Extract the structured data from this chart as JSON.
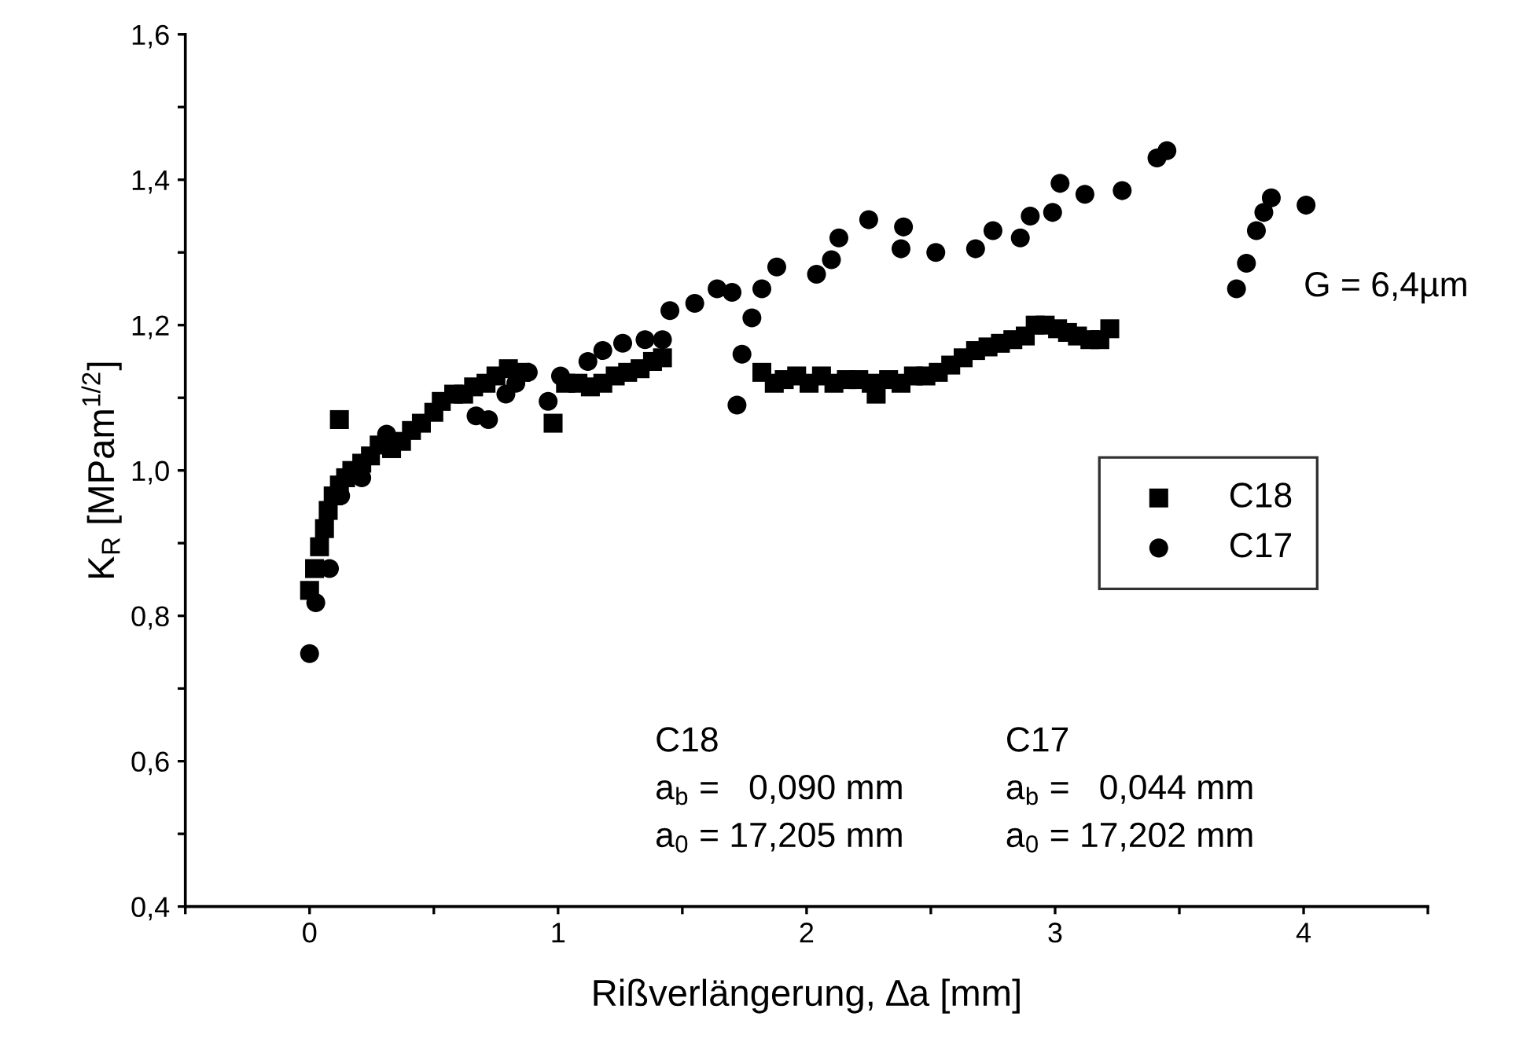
{
  "chart_data": {
    "type": "scatter",
    "xlabel": "Rißverlängerung, ∆a [mm]",
    "ylabel": "K$_{R}$ [MPam$^{1/2}$]",
    "xlim": [
      -0.5,
      4.5
    ],
    "ylim": [
      0.4,
      1.6
    ],
    "xticks": [
      {
        "value": -0.5,
        "label": null
      },
      0,
      {
        "value": 0.5,
        "label": null
      },
      1,
      {
        "value": 1.5,
        "label": null
      },
      2,
      {
        "value": 2.5,
        "label": null
      },
      3,
      {
        "value": 3.5,
        "label": null
      },
      4,
      {
        "value": 4.5,
        "label": null
      }
    ],
    "yticks": [
      {
        "value": 0.4,
        "label": "0,4"
      },
      {
        "value": 0.5,
        "label": null
      },
      {
        "value": 0.6,
        "label": "0,6"
      },
      {
        "value": 0.7,
        "label": null
      },
      {
        "value": 0.8,
        "label": "0,8"
      },
      {
        "value": 0.9,
        "label": null
      },
      {
        "value": 1.0,
        "label": "1,0"
      },
      {
        "value": 1.1,
        "label": null
      },
      {
        "value": 1.2,
        "label": "1,2"
      },
      {
        "value": 1.3,
        "label": null
      },
      {
        "value": 1.4,
        "label": "1,4"
      },
      {
        "value": 1.5,
        "label": null
      },
      {
        "value": 1.6,
        "label": "1,6"
      }
    ],
    "grid": false,
    "legend": "right",
    "annotations": [
      "G = 6,4µm",
      "C18\na$_{b}$ =   0,090 mm\na$_{0}$ = 17,205 mm",
      "C17\na$_{b}$ =   0,044 mm\na$_{0}$ = 17,202 mm"
    ],
    "series": [
      {
        "name": "C18",
        "color": "#000000",
        "marker": "square",
        "x": [
          0,
          0.02,
          0.04,
          0.06,
          0.075,
          0.095,
          0.12,
          0.145,
          0.17,
          0.12,
          0.21,
          0.245,
          0.28,
          0.33,
          0.37,
          0.41,
          0.45,
          0.5,
          0.53,
          0.58,
          0.62,
          0.66,
          0.71,
          0.75,
          0.8,
          0.85,
          0.98,
          1.03,
          1.08,
          1.13,
          1.18,
          1.23,
          1.28,
          1.33,
          1.38,
          1.42,
          1.82,
          1.87,
          1.91,
          1.96,
          2.01,
          2.06,
          2.11,
          2.16,
          2.21,
          2.26,
          2.28,
          2.33,
          2.38,
          2.43,
          2.48,
          2.53,
          2.58,
          2.63,
          2.68,
          2.73,
          2.78,
          2.83,
          2.88,
          2.92,
          2.96,
          3.01,
          3.05,
          3.09,
          3.14,
          3.18,
          3.22
        ],
        "values": [
          0.835,
          0.865,
          0.895,
          0.92,
          0.945,
          0.965,
          0.98,
          0.99,
          1.0,
          1.07,
          1.01,
          1.02,
          1.035,
          1.03,
          1.04,
          1.055,
          1.065,
          1.08,
          1.095,
          1.105,
          1.105,
          1.115,
          1.12,
          1.13,
          1.14,
          1.135,
          1.065,
          1.12,
          1.12,
          1.115,
          1.12,
          1.13,
          1.135,
          1.14,
          1.15,
          1.155,
          1.135,
          1.12,
          1.125,
          1.13,
          1.12,
          1.13,
          1.12,
          1.125,
          1.125,
          1.12,
          1.105,
          1.125,
          1.12,
          1.13,
          1.13,
          1.135,
          1.145,
          1.155,
          1.165,
          1.17,
          1.175,
          1.18,
          1.185,
          1.2,
          1.2,
          1.195,
          1.19,
          1.185,
          1.18,
          1.18,
          1.195
        ]
      },
      {
        "name": "C17",
        "color": "#000000",
        "marker": "circle",
        "x": [
          0,
          0.025,
          0.08,
          0.125,
          0.17,
          0.21,
          0.31,
          0.39,
          0.61,
          0.67,
          0.72,
          0.79,
          0.83,
          0.88,
          0.96,
          1.01,
          1.12,
          1.18,
          1.26,
          1.35,
          1.42,
          1.45,
          1.55,
          1.64,
          1.7,
          1.72,
          1.74,
          1.78,
          1.82,
          1.88,
          2.04,
          2.1,
          2.13,
          2.25,
          2.38,
          2.39,
          2.52,
          2.68,
          2.75,
          2.86,
          2.9,
          2.99,
          3.02,
          3.12,
          3.27,
          3.41,
          3.45,
          3.73,
          3.77,
          3.81,
          3.84,
          3.87,
          4.01
        ],
        "values": [
          0.748,
          0.818,
          0.865,
          0.965,
          null,
          0.99,
          1.05,
          null,
          null,
          1.075,
          1.07,
          1.105,
          1.12,
          1.135,
          1.095,
          1.13,
          1.15,
          1.165,
          1.175,
          1.18,
          1.18,
          1.22,
          1.23,
          1.25,
          1.245,
          1.09,
          1.16,
          1.21,
          1.25,
          1.28,
          1.27,
          1.29,
          1.32,
          1.345,
          1.305,
          1.335,
          1.3,
          1.305,
          1.33,
          1.32,
          1.35,
          1.355,
          1.395,
          1.38,
          1.385,
          1.43,
          1.44,
          1.25,
          1.285,
          1.33,
          1.355,
          1.375,
          1.365
        ]
      }
    ]
  }
}
